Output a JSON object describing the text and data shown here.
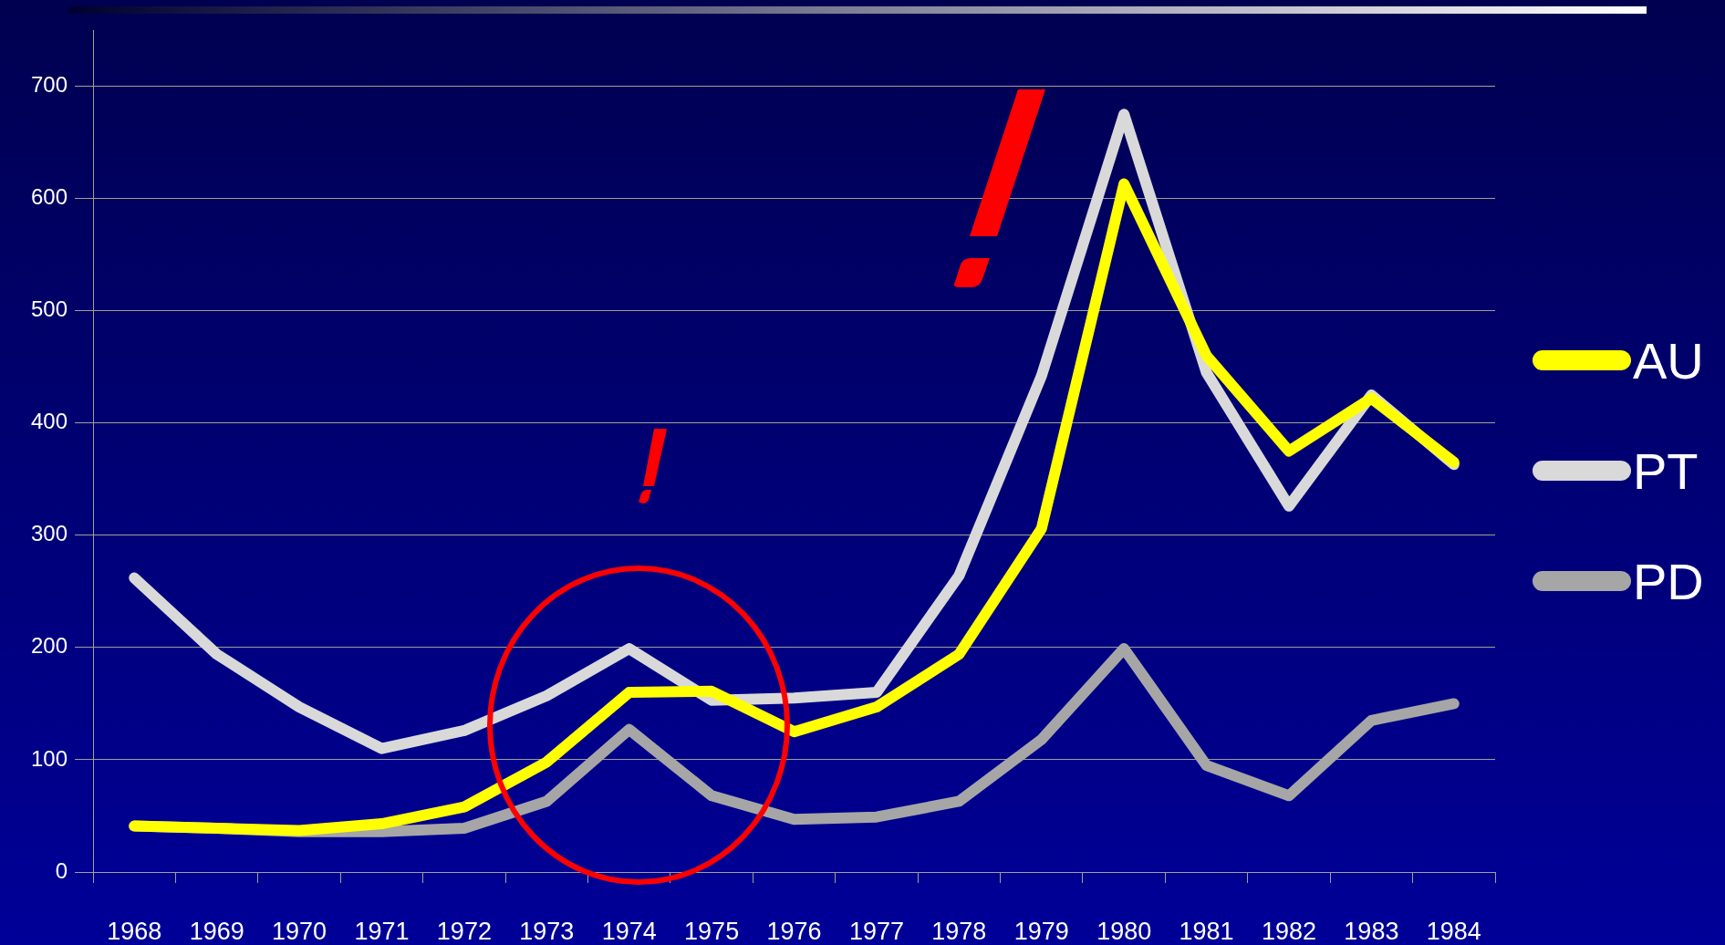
{
  "chart_data": {
    "type": "line",
    "categories": [
      "1968",
      "1969",
      "1970",
      "1971",
      "1972",
      "1973",
      "1974",
      "1975",
      "1976",
      "1977",
      "1978",
      "1979",
      "1980",
      "1981",
      "1982",
      "1983",
      "1984"
    ],
    "series": [
      {
        "name": "AU",
        "color": "#ffff00",
        "values": [
          41,
          39,
          37,
          43,
          58,
          98,
          160,
          161,
          125,
          147,
          194,
          306,
          613,
          460,
          375,
          422,
          365
        ]
      },
      {
        "name": "PT",
        "color": "#d9d9d9",
        "values": [
          262,
          194,
          147,
          110,
          126,
          157,
          199,
          153,
          155,
          160,
          264,
          442,
          675,
          445,
          326,
          425,
          363
        ]
      },
      {
        "name": "PD",
        "color": "#a6a6a6",
        "values": [
          41,
          39,
          36,
          36,
          39,
          63,
          127,
          68,
          47,
          49,
          63,
          118,
          199,
          95,
          68,
          135,
          150
        ]
      }
    ],
    "ylim": [
      0,
      750
    ],
    "yticks": [
      0,
      100,
      200,
      300,
      400,
      500,
      600,
      700
    ],
    "grid": "y",
    "legend": "right",
    "marker": "none",
    "line_style": "solid"
  }
}
